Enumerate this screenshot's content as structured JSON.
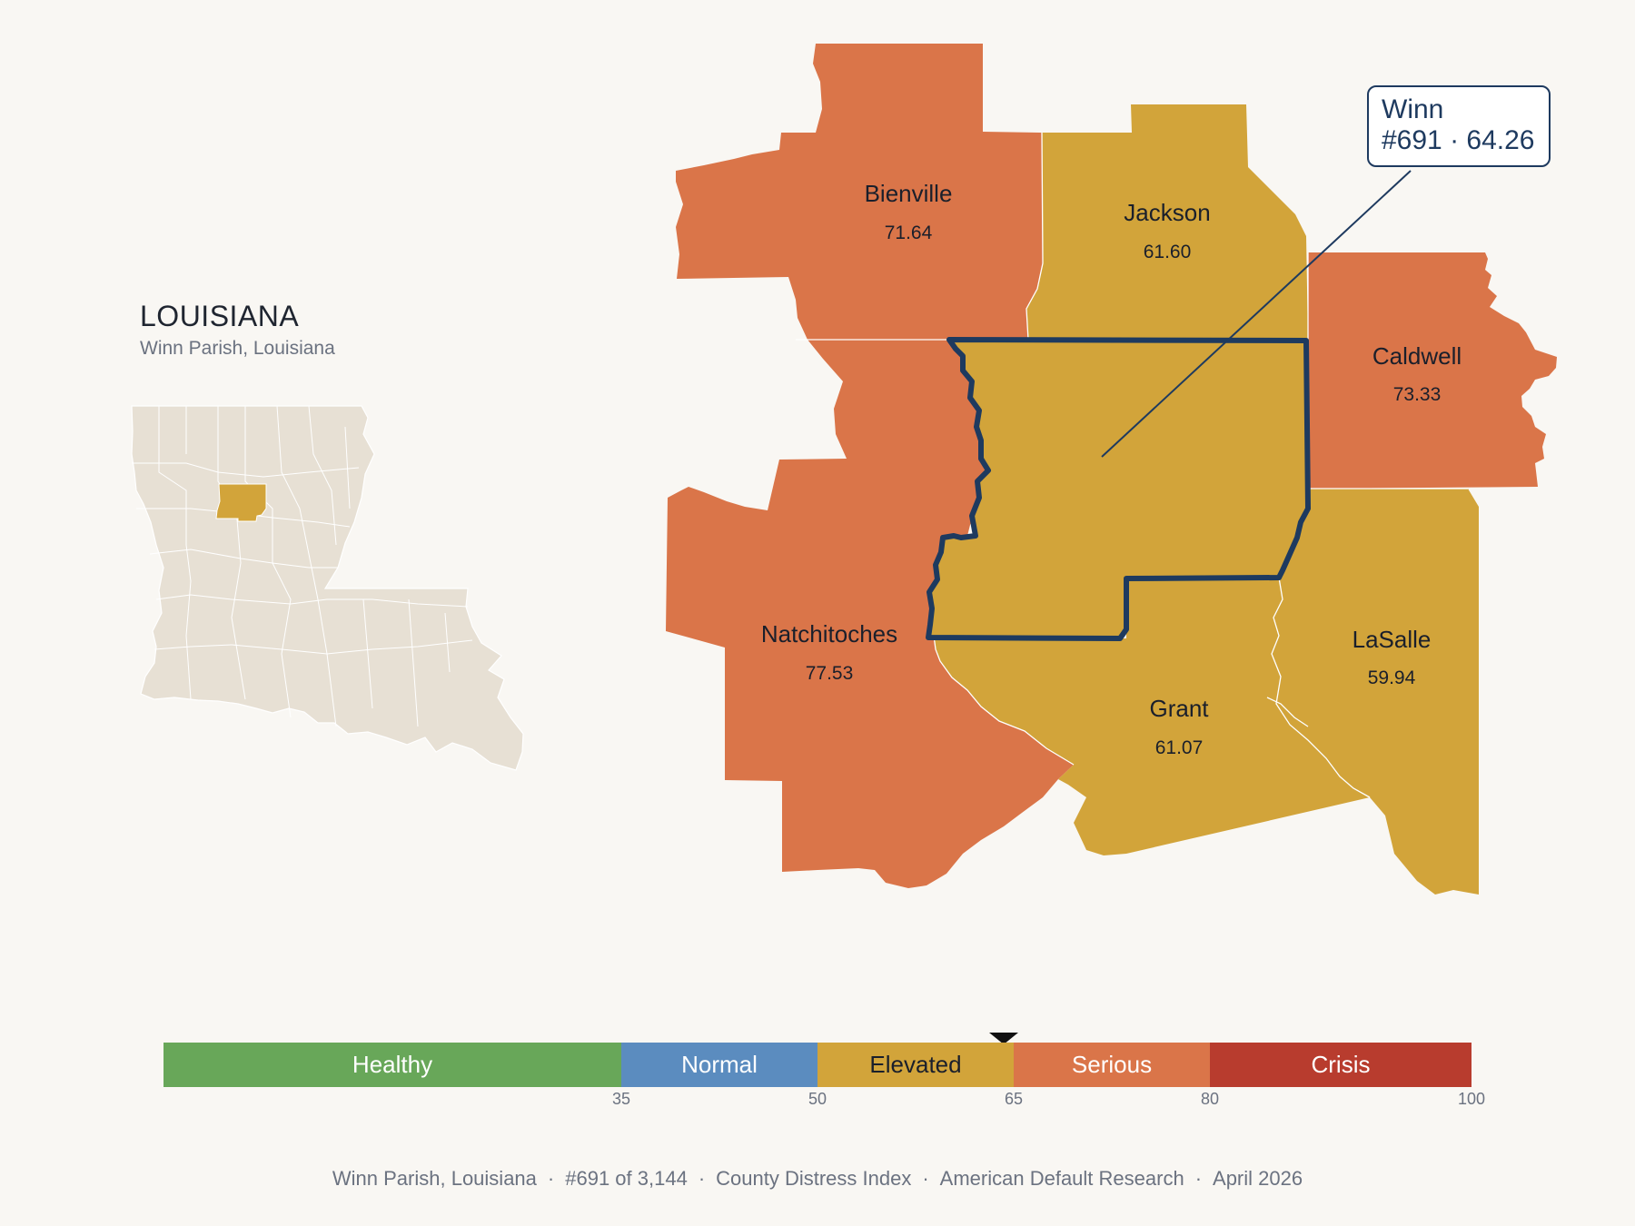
{
  "state": {
    "title": "LOUISIANA",
    "subtitle": "Winn Parish, Louisiana"
  },
  "colors": {
    "background": "#f9f7f3",
    "serious": "#da7549",
    "elevated": "#d2a43a",
    "outline": "#1e3a5f",
    "locator_base": "#e7e0d4",
    "locator_highlight": "#d2a43a"
  },
  "counties": [
    {
      "name": "Bienville",
      "value": "71.64",
      "category": "Serious"
    },
    {
      "name": "Jackson",
      "value": "61.60",
      "category": "Elevated"
    },
    {
      "name": "Caldwell",
      "value": "73.33",
      "category": "Serious"
    },
    {
      "name": "Natchitoches",
      "value": "77.53",
      "category": "Serious"
    },
    {
      "name": "Grant",
      "value": "61.07",
      "category": "Elevated"
    },
    {
      "name": "LaSalle",
      "value": "59.94",
      "category": "Elevated"
    },
    {
      "name": "Winn",
      "value": "64.26",
      "category": "Elevated",
      "highlighted": true
    }
  ],
  "callout": {
    "line1": "Winn",
    "line2": "#691 · 64.26"
  },
  "scale": {
    "min": 0,
    "max": 100,
    "marker_value": 64.26,
    "segments": [
      {
        "label": "Healthy",
        "from": 0,
        "to": 35,
        "color": "#68a759",
        "text_color": "#ffffff"
      },
      {
        "label": "Normal",
        "from": 35,
        "to": 50,
        "color": "#5b8cbf",
        "text_color": "#ffffff"
      },
      {
        "label": "Elevated",
        "from": 50,
        "to": 65,
        "color": "#d2a43a",
        "text_color": "#1a1f2b"
      },
      {
        "label": "Serious",
        "from": 65,
        "to": 80,
        "color": "#da7549",
        "text_color": "#ffffff"
      },
      {
        "label": "Crisis",
        "from": 80,
        "to": 100,
        "color": "#b83c2e",
        "text_color": "#ffffff"
      }
    ],
    "ticks": [
      "35",
      "50",
      "65",
      "80",
      "100"
    ]
  },
  "footer": {
    "items": [
      "Winn Parish, Louisiana",
      "#691 of 3,144",
      "County Distress Index",
      "American Default Research",
      "April 2026"
    ],
    "separator": "·"
  }
}
